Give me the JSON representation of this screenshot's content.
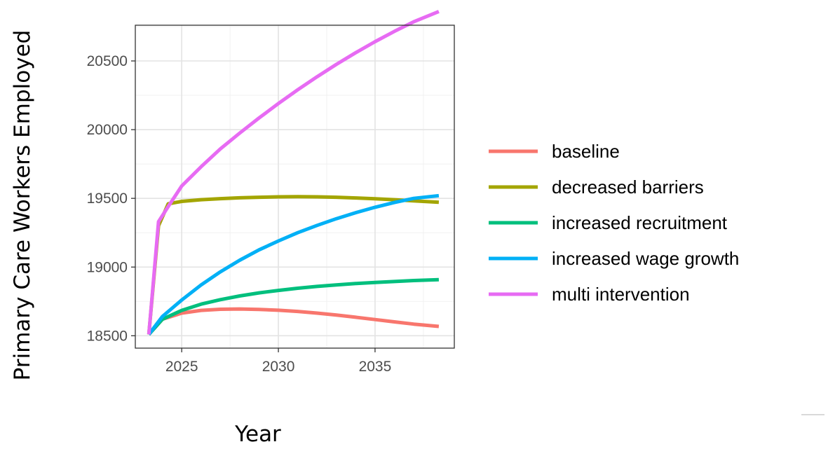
{
  "chart_data": {
    "type": "line",
    "xlabel": "Year",
    "ylabel": "Primary Care Workers Employed",
    "xlim": [
      2022.6,
      2039.1
    ],
    "ylim": [
      18410,
      20760
    ],
    "x_ticks": [
      "2025",
      "2030",
      "2035"
    ],
    "y_ticks": [
      "18500",
      "19000",
      "19500",
      "20000",
      "20500"
    ],
    "grid": true,
    "legend_position": "right",
    "series": [
      {
        "name": "baseline",
        "color": "#F8766D",
        "x": [
          2023.3,
          2024,
          2025,
          2026,
          2027,
          2028,
          2029,
          2030,
          2031,
          2032,
          2033,
          2034,
          2035,
          2036,
          2037,
          2038.3
        ],
        "y": [
          18510,
          18620,
          18665,
          18685,
          18693,
          18695,
          18692,
          18686,
          18677,
          18665,
          18651,
          18635,
          18618,
          18601,
          18585,
          18568
        ]
      },
      {
        "name": "decreased barriers",
        "color": "#A3A500",
        "x": [
          2023.3,
          2023.8,
          2024.3,
          2025,
          2026,
          2027,
          2028,
          2029,
          2030,
          2031,
          2032,
          2033,
          2034,
          2035,
          2036,
          2037,
          2038.3
        ],
        "y": [
          18510,
          19300,
          19460,
          19478,
          19490,
          19498,
          19504,
          19508,
          19511,
          19512,
          19511,
          19508,
          19503,
          19497,
          19490,
          19482,
          19472
        ]
      },
      {
        "name": "increased recruitment",
        "color": "#00BF7D",
        "x": [
          2023.3,
          2024,
          2025,
          2026,
          2027,
          2028,
          2029,
          2030,
          2031,
          2032,
          2033,
          2034,
          2035,
          2036,
          2037,
          2038.3
        ],
        "y": [
          18510,
          18620,
          18685,
          18730,
          18763,
          18790,
          18812,
          18830,
          18846,
          18859,
          18870,
          18880,
          18888,
          18895,
          18902,
          18908
        ]
      },
      {
        "name": "increased wage growth",
        "color": "#00B0F6",
        "x": [
          2023.3,
          2024,
          2025,
          2026,
          2027,
          2028,
          2029,
          2030,
          2031,
          2032,
          2033,
          2034,
          2035,
          2036,
          2037,
          2038.3
        ],
        "y": [
          18510,
          18640,
          18760,
          18870,
          18965,
          19050,
          19125,
          19190,
          19250,
          19303,
          19352,
          19396,
          19435,
          19470,
          19500,
          19520
        ]
      },
      {
        "name": "multi intervention",
        "color": "#E76BF3",
        "x": [
          2023.3,
          2023.8,
          2024.3,
          2025,
          2026,
          2027,
          2028,
          2029,
          2030,
          2031,
          2032,
          2033,
          2034,
          2035,
          2036,
          2037,
          2038.3
        ],
        "y": [
          18510,
          19330,
          19440,
          19590,
          19730,
          19860,
          19975,
          20085,
          20190,
          20290,
          20385,
          20475,
          20560,
          20640,
          20715,
          20785,
          20860
        ]
      }
    ]
  }
}
